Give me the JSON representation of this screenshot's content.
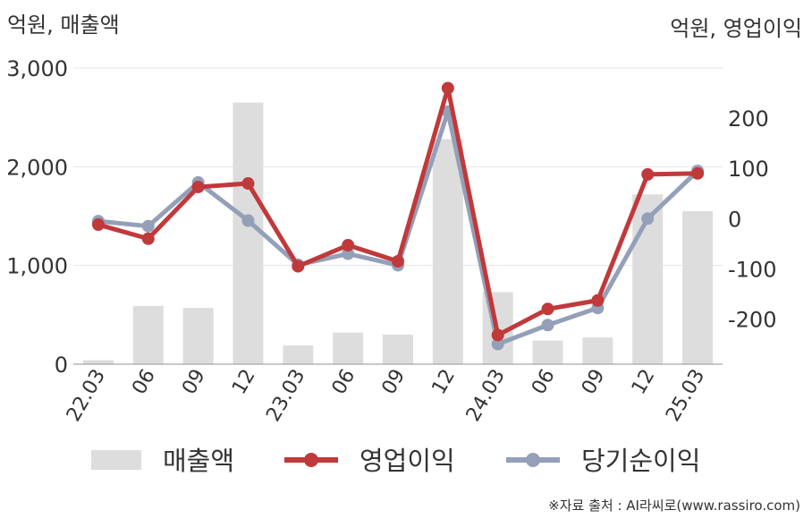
{
  "chart_data": {
    "type": "bar+line",
    "left_axis_unit": "억원, 매출액",
    "right_axis_unit": "억원, 영업이익",
    "categories": [
      "22.03",
      "06",
      "09",
      "12",
      "23.03",
      "06",
      "09",
      "12",
      "24.03",
      "06",
      "09",
      "12",
      "25.03"
    ],
    "left_axis": {
      "ylim": [
        0,
        3000
      ],
      "ticks": [
        "0",
        "1,000",
        "2,000",
        "3,000"
      ],
      "tick_values": [
        0,
        1000,
        2000,
        3000
      ]
    },
    "right_axis": {
      "ylim": [
        -290,
        300
      ],
      "ticks": [
        "-200",
        "-100",
        "0",
        "100",
        "200"
      ],
      "tick_values": [
        -200,
        -100,
        0,
        100,
        200
      ]
    },
    "series": [
      {
        "name": "매출액",
        "type": "bar",
        "axis": "left",
        "color": "#dddddd",
        "values": [
          40,
          590,
          570,
          2650,
          190,
          320,
          300,
          2280,
          730,
          240,
          270,
          1720,
          1550
        ]
      },
      {
        "name": "영업이익",
        "type": "line",
        "axis": "right",
        "color": "#c0393b",
        "values": [
          -12,
          -40,
          63,
          70,
          -95,
          -53,
          -85,
          260,
          -232,
          -180,
          -163,
          88,
          90
        ]
      },
      {
        "name": "당기순이익",
        "type": "line",
        "axis": "right",
        "color": "#94a0b8",
        "values": [
          -5,
          -15,
          72,
          -4,
          -92,
          -70,
          -93,
          213,
          -250,
          -212,
          -178,
          0,
          95
        ]
      }
    ],
    "grid": true,
    "legend_position": "bottom"
  },
  "source": "※자료 출처 : AI라씨로(www.rassiro.com)"
}
